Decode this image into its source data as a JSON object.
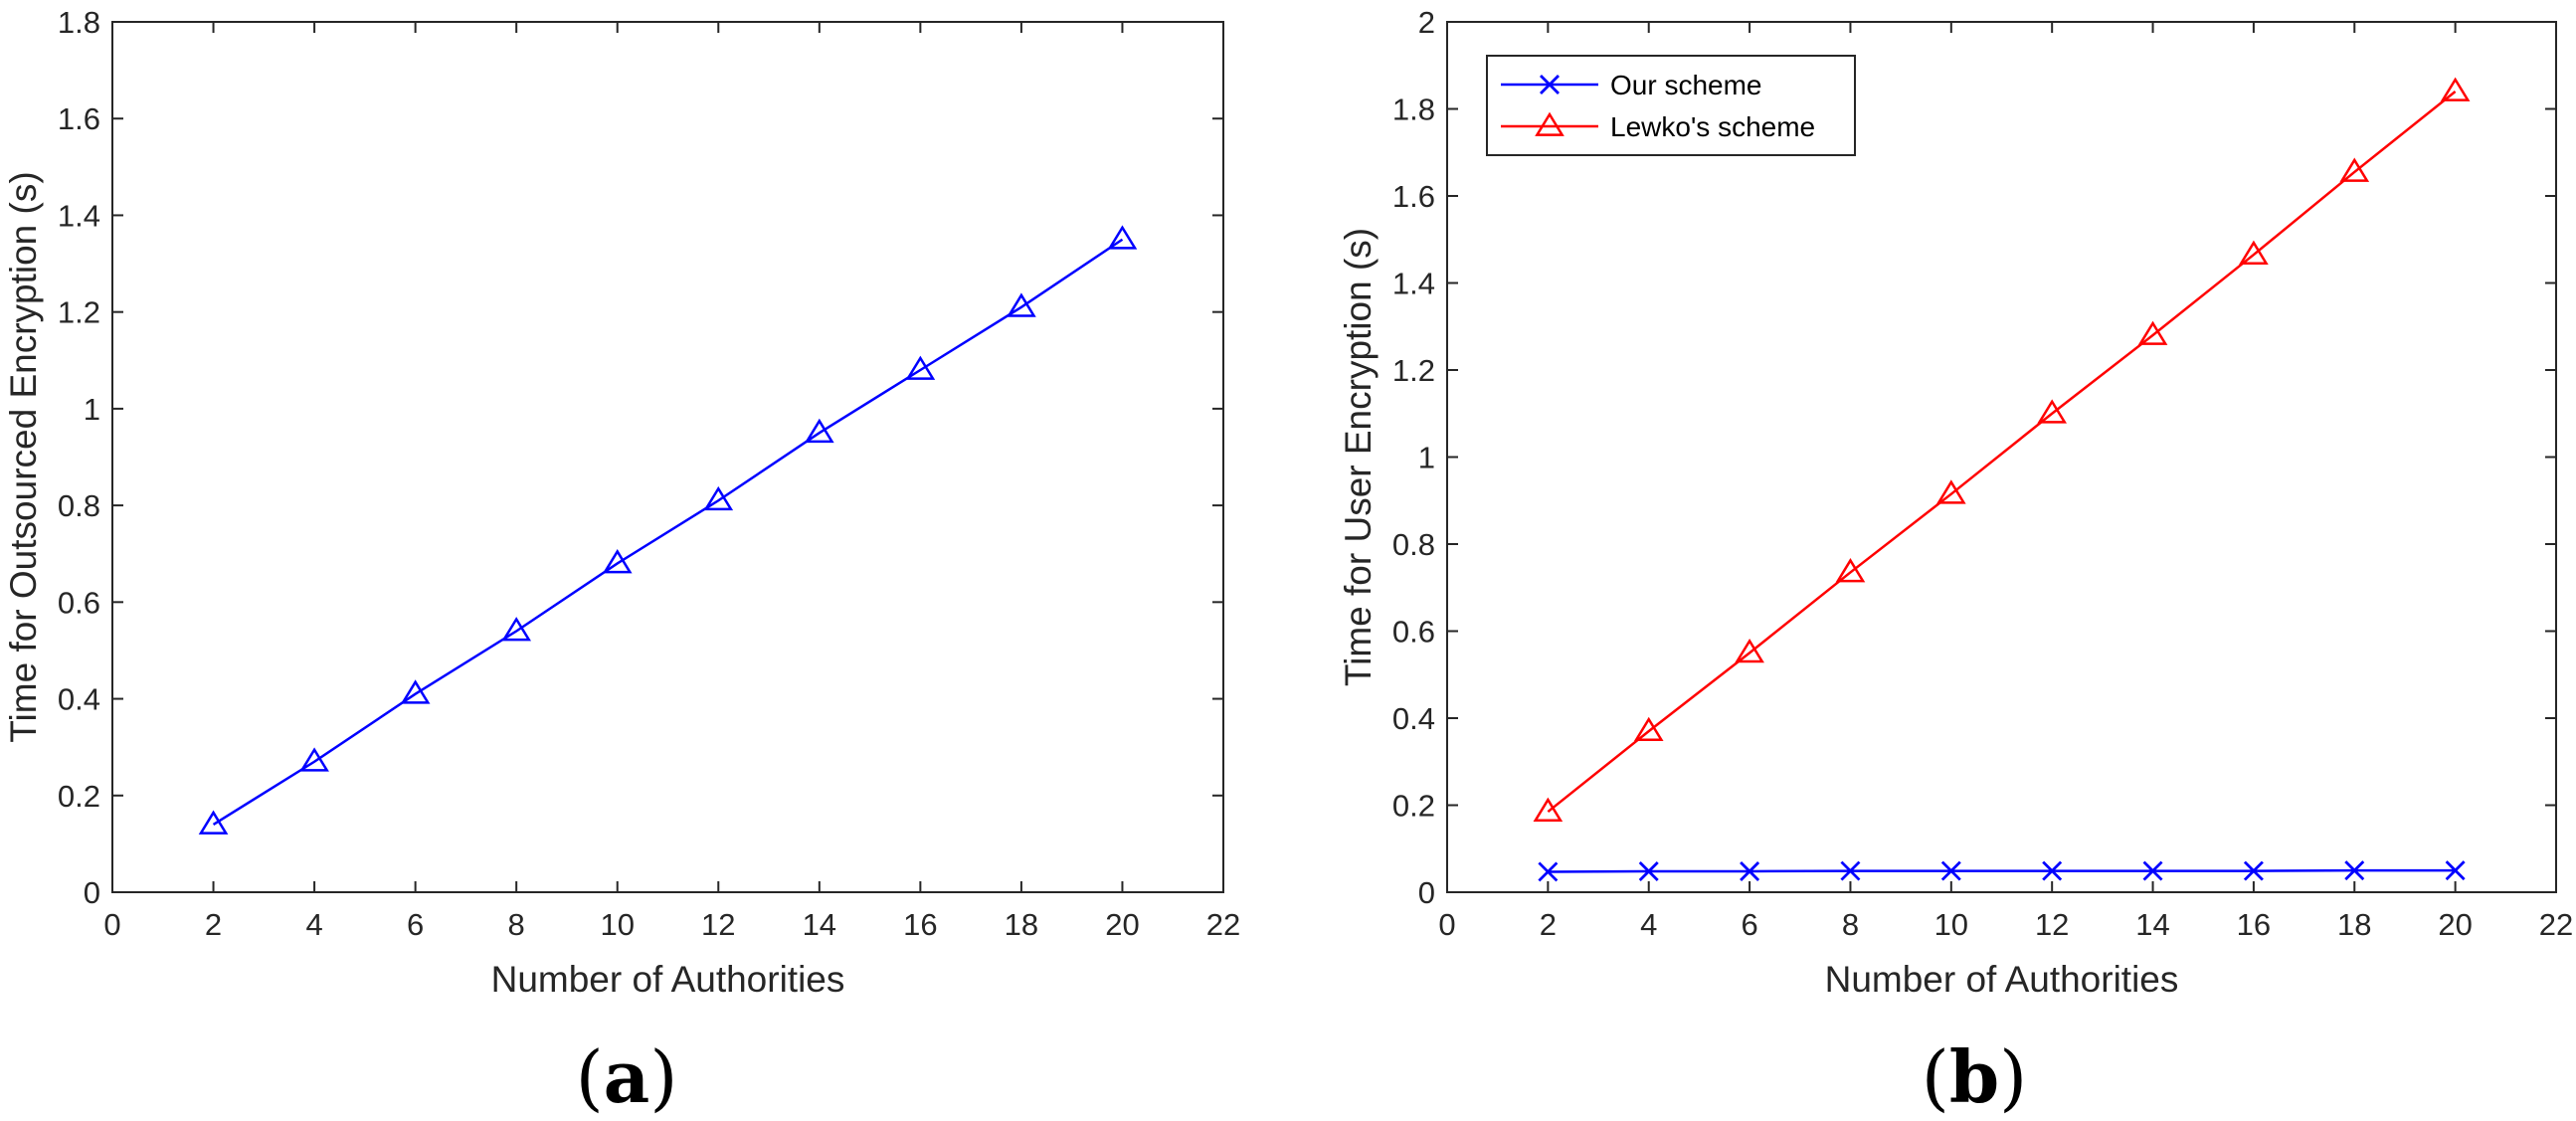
{
  "chart_data": [
    {
      "type": "line",
      "panel_label": {
        "open": "(",
        "letter": "a",
        "close": ")"
      },
      "xlabel": "Number of Authorities",
      "ylabel": "Time for Outsourced Encryption (s)",
      "xlim": [
        0,
        22
      ],
      "ylim": [
        0,
        1.8
      ],
      "xticks": [
        "0",
        "2",
        "4",
        "6",
        "8",
        "10",
        "12",
        "14",
        "16",
        "18",
        "20",
        "22"
      ],
      "yticks": [
        "0",
        "0.2",
        "0.4",
        "0.6",
        "0.8",
        "1",
        "1.2",
        "1.4",
        "1.6",
        "1.8"
      ],
      "grid": false,
      "series": [
        {
          "color": "#0000ff",
          "marker": "triangle",
          "x": [
            2,
            4,
            6,
            8,
            10,
            12,
            14,
            16,
            18,
            20
          ],
          "values": [
            0.14,
            0.27,
            0.41,
            0.54,
            0.68,
            0.81,
            0.95,
            1.08,
            1.21,
            1.35
          ]
        }
      ]
    },
    {
      "type": "line",
      "panel_label": {
        "open": "(",
        "letter": "b",
        "close": ")"
      },
      "xlabel": "Number of Authorities",
      "ylabel": "Time for User Encryption (s)",
      "xlim": [
        0,
        22
      ],
      "ylim": [
        0,
        2
      ],
      "xticks": [
        "0",
        "2",
        "4",
        "6",
        "8",
        "10",
        "12",
        "14",
        "16",
        "18",
        "20",
        "22"
      ],
      "yticks": [
        "0",
        "0.2",
        "0.4",
        "0.6",
        "0.8",
        "1",
        "1.2",
        "1.4",
        "1.6",
        "1.8",
        "2"
      ],
      "grid": false,
      "legend_position": "top-left",
      "series": [
        {
          "name": "Our scheme",
          "color": "#0000ff",
          "marker": "x",
          "x": [
            2,
            4,
            6,
            8,
            10,
            12,
            14,
            16,
            18,
            20
          ],
          "values": [
            0.047,
            0.048,
            0.048,
            0.049,
            0.049,
            0.049,
            0.049,
            0.049,
            0.05,
            0.05
          ]
        },
        {
          "name": "Lewko's scheme",
          "color": "#ff0000",
          "marker": "triangle",
          "x": [
            2,
            4,
            6,
            8,
            10,
            12,
            14,
            16,
            18,
            20
          ],
          "values": [
            0.185,
            0.37,
            0.55,
            0.735,
            0.915,
            1.1,
            1.28,
            1.465,
            1.655,
            1.84
          ]
        }
      ]
    }
  ]
}
